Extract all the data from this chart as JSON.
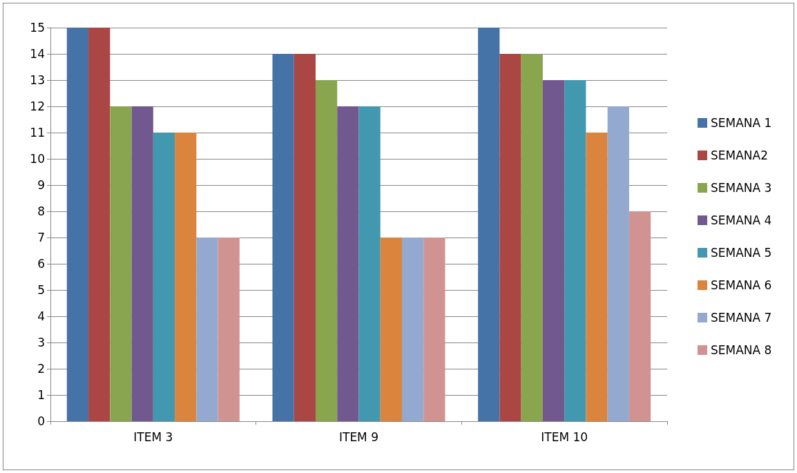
{
  "chart_data": {
    "type": "bar",
    "categories": [
      "ITEM 3",
      "ITEM 9",
      "ITEM 10"
    ],
    "series": [
      {
        "name": "SEMANA 1",
        "color": "#4572a7",
        "values": [
          15,
          14,
          15
        ]
      },
      {
        "name": "SEMANA2",
        "color": "#aa4643",
        "values": [
          15,
          14,
          14
        ]
      },
      {
        "name": "SEMANA 3",
        "color": "#89a54e",
        "values": [
          12,
          13,
          14
        ]
      },
      {
        "name": "SEMANA 4",
        "color": "#71588f",
        "values": [
          12,
          12,
          13
        ]
      },
      {
        "name": "SEMANA 5",
        "color": "#4198af",
        "values": [
          11,
          12,
          13
        ]
      },
      {
        "name": "SEMANA 6",
        "color": "#db843d",
        "values": [
          11,
          7,
          11
        ]
      },
      {
        "name": "SEMANA 7",
        "color": "#93a9cf",
        "values": [
          7,
          7,
          12
        ]
      },
      {
        "name": "SEMANA 8",
        "color": "#d19392",
        "values": [
          7,
          7,
          8
        ]
      }
    ],
    "ylim": [
      0,
      15
    ],
    "yticks": [
      0,
      1,
      2,
      3,
      4,
      5,
      6,
      7,
      8,
      9,
      10,
      11,
      12,
      13,
      14,
      15
    ],
    "grid": "y",
    "legend": "right"
  }
}
